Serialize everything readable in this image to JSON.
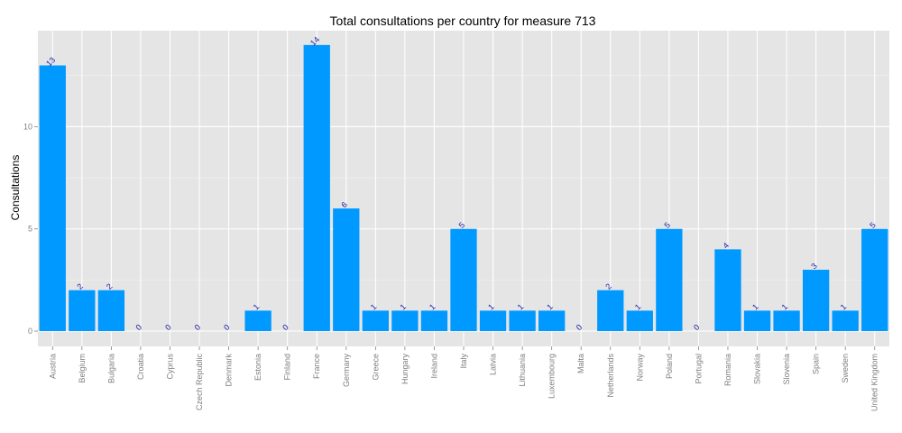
{
  "chart_data": {
    "type": "bar",
    "title": "Total consultations per country for measure 713",
    "xlabel": "",
    "ylabel": "Consultations",
    "ylim": [
      -0.75,
      14.7
    ],
    "yticks": [
      0,
      5,
      10
    ],
    "grid": true,
    "legend": "none",
    "colors": {
      "bar": "#0099ff",
      "panel": "#e5e5e5",
      "grid_major": "#ffffff",
      "grid_minor": "#f2f2f2",
      "label": "#1a1aa6"
    },
    "categories": [
      "Austria",
      "Belgium",
      "Bulgaria",
      "Croatia",
      "Cyprus",
      "Czech Republic",
      "Denmark",
      "Estonia",
      "Finland",
      "France",
      "Germany",
      "Greece",
      "Hungary",
      "Ireland",
      "Italy",
      "Latvia",
      "Lithuania",
      "Luxembourg",
      "Malta",
      "Netherlands",
      "Norway",
      "Poland",
      "Portugal",
      "Romania",
      "Slovakia",
      "Slovenia",
      "Spain",
      "Sweden",
      "United Kingdom"
    ],
    "values": [
      13,
      2,
      2,
      0,
      0,
      0,
      0,
      1,
      0,
      14,
      6,
      1,
      1,
      1,
      5,
      1,
      1,
      1,
      0,
      2,
      1,
      5,
      0,
      4,
      1,
      1,
      3,
      1,
      5
    ]
  }
}
